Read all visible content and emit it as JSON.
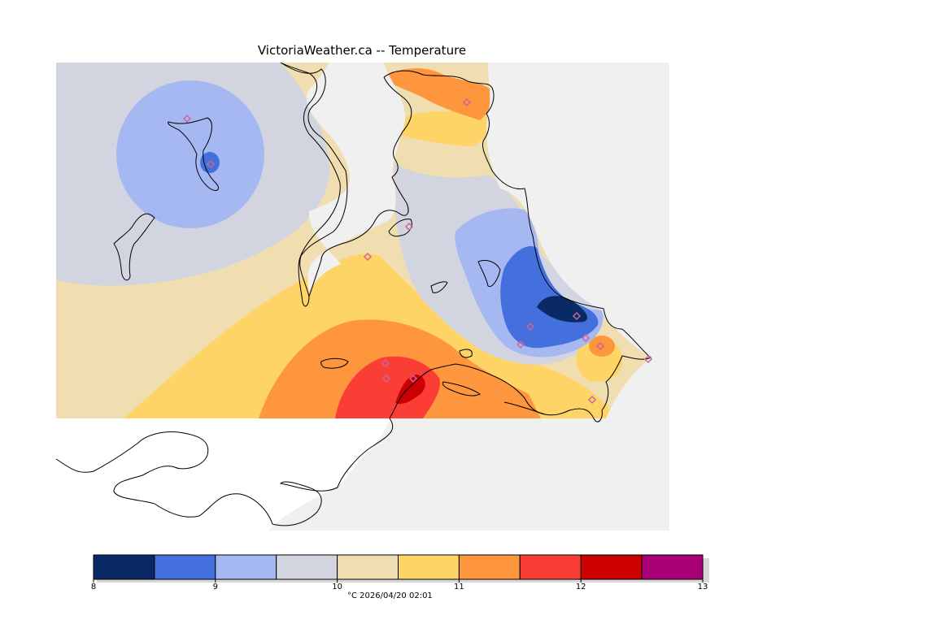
{
  "header": {
    "title": "VictoriaWeather.ca -- Temperature"
  },
  "map": {
    "variable": "Temperature",
    "units": "°C",
    "background_color": "#f0f0f0",
    "coastline_color": "#000000",
    "station_marker_color": "#cc6699"
  },
  "legend": {
    "levels": [
      {
        "from": 8.0,
        "to": 8.5,
        "color": "#0a2a66"
      },
      {
        "from": 8.5,
        "to": 9.0,
        "color": "#4470dd"
      },
      {
        "from": 9.0,
        "to": 9.5,
        "color": "#a6b8f2"
      },
      {
        "from": 9.5,
        "to": 10.0,
        "color": "#d2d5e0"
      },
      {
        "from": 10.0,
        "to": 10.5,
        "color": "#f0deb0"
      },
      {
        "from": 10.5,
        "to": 11.0,
        "color": "#fed466"
      },
      {
        "from": 11.0,
        "to": 11.5,
        "color": "#fd963c"
      },
      {
        "from": 11.5,
        "to": 12.0,
        "color": "#fa3e36"
      },
      {
        "from": 12.0,
        "to": 12.5,
        "color": "#cc0000"
      },
      {
        "from": 12.5,
        "to": 13.0,
        "color": "#aa0077"
      }
    ],
    "tick_labels": [
      "8",
      "9",
      "10",
      "11",
      "12",
      "13"
    ],
    "units_label": "°C",
    "timestamp": "2026/04/20 02:01",
    "footer": "°C  2026/04/20 02:01"
  }
}
